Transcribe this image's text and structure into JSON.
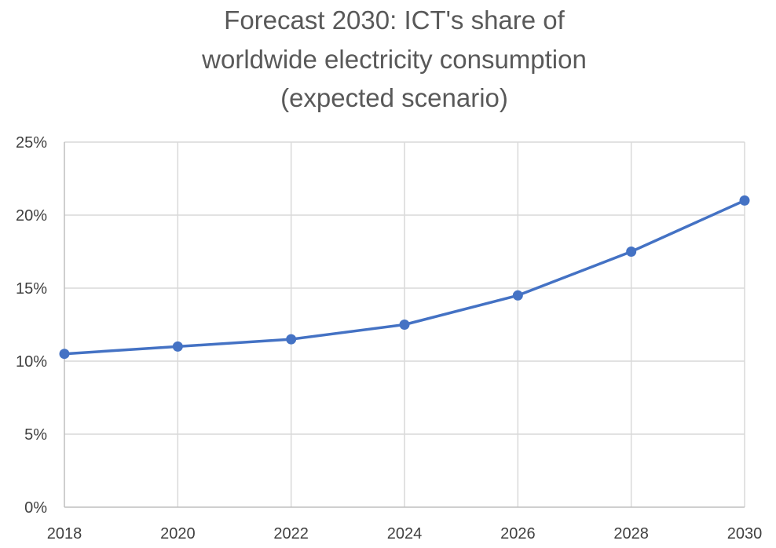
{
  "chart_data": {
    "type": "line",
    "title_lines": [
      "Forecast 2030:  ICT's share of",
      "worldwide electricity consumption",
      "(expected scenario)"
    ],
    "x": [
      2018,
      2020,
      2022,
      2024,
      2026,
      2028,
      2030
    ],
    "x_tick_labels": [
      "2018",
      "2020",
      "2022",
      "2024",
      "2026",
      "2028",
      "2030"
    ],
    "xlim": [
      2018,
      2030
    ],
    "y_tick_labels": [
      "0%",
      "5%",
      "10%",
      "15%",
      "20%",
      "25%"
    ],
    "ylim": [
      0,
      25
    ],
    "y_unit": "%",
    "series": [
      {
        "values": [
          10.5,
          11.0,
          11.5,
          12.5,
          14.5,
          17.5,
          21.0
        ],
        "color": "#4472c4",
        "marker": "circle"
      }
    ],
    "grid": {
      "vertical": true,
      "horizontal": true
    },
    "legend": "none",
    "xlabel": "",
    "ylabel": ""
  }
}
